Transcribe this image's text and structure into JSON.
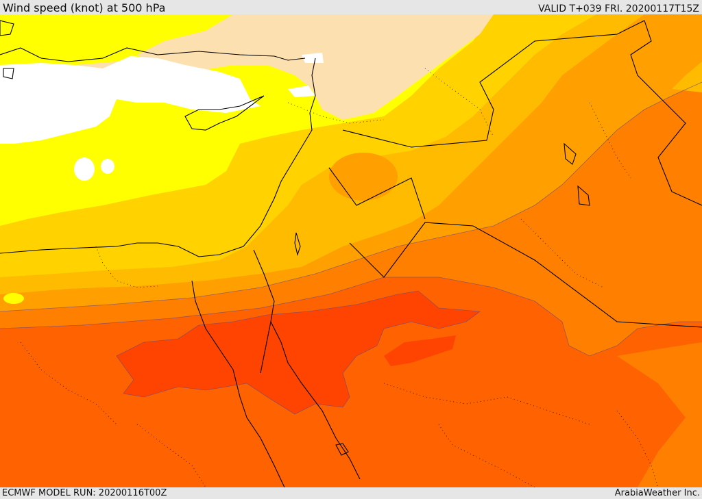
{
  "header": {
    "title": "Wind speed (knot) at 500 hPa",
    "valid_time": "VALID T+039 FRI. 20200117T15Z"
  },
  "footer": {
    "model_run": "ECMWF MODEL RUN: 20200116T00Z",
    "credit": "ArabiaWeather Inc."
  },
  "colors": {
    "calm": "#ffffff",
    "band_1": "#fde0b0",
    "band_2": "#ffff00",
    "band_3": "#ffd200",
    "band_4": "#ffbb00",
    "band_5": "#ff9f00",
    "band_6": "#ff8000",
    "band_7": "#ff6200",
    "band_8": "#ff4300",
    "coastline": "#000000"
  }
}
